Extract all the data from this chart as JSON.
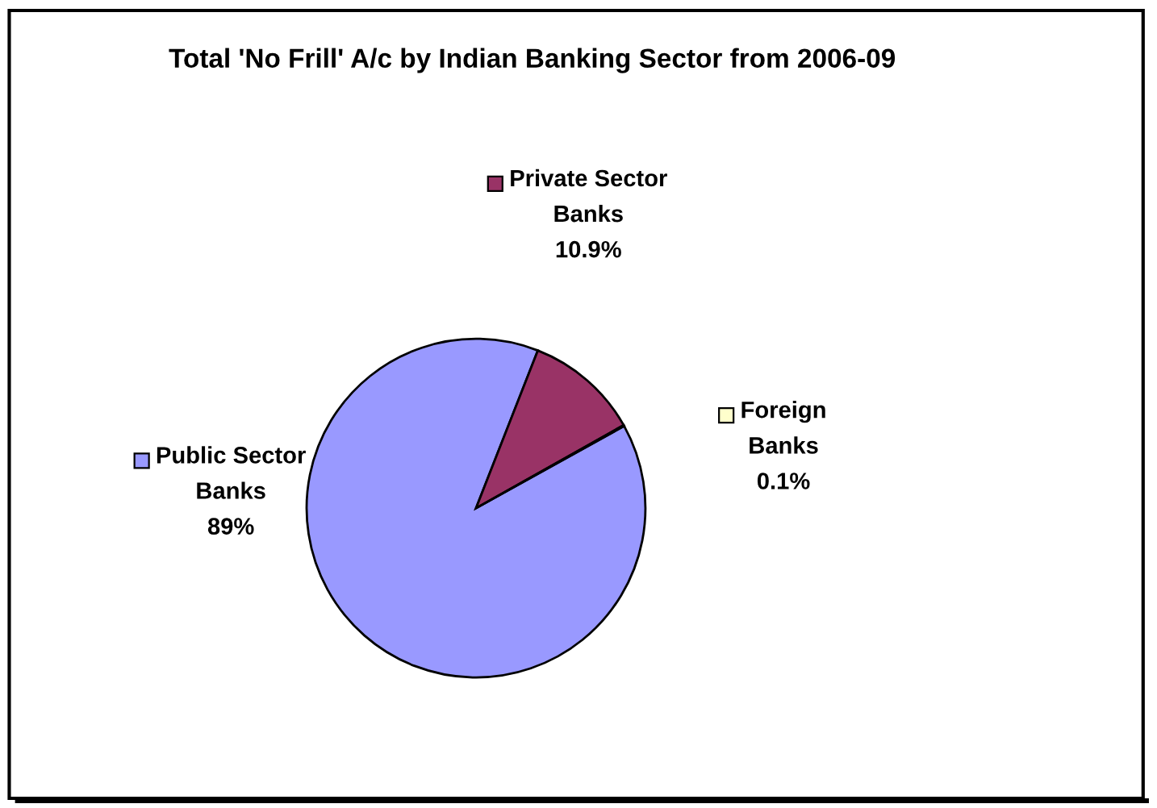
{
  "chart_data": {
    "type": "pie",
    "title": "Total 'No Frill' A/c by Indian Banking Sector from 2006-09",
    "categories": [
      "Public Sector Banks",
      "Private Sector Banks",
      "Foreign Banks"
    ],
    "values": [
      89,
      10.9,
      0.1
    ],
    "colors": [
      "#9999ff",
      "#993366",
      "#ffffcc"
    ],
    "value_labels": [
      "89%",
      "10.9%",
      "0.1%"
    ],
    "legend": true
  }
}
